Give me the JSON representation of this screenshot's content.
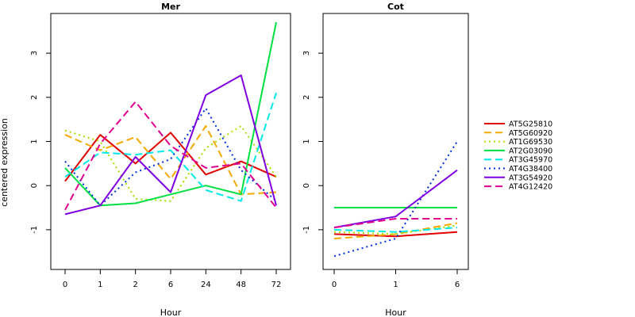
{
  "ylabel": "centered expression",
  "legend_placement": "right",
  "series_meta": [
    {
      "name": "AT5G25810",
      "color": "#e00000",
      "dash": "solid"
    },
    {
      "name": "AT5G60920",
      "color": "#f5a800",
      "dash": "dashed"
    },
    {
      "name": "AT1G69530",
      "color": "#a8e000",
      "dash": "dotted"
    },
    {
      "name": "AT2G03090",
      "color": "#00e040",
      "dash": "solid"
    },
    {
      "name": "AT3G45970",
      "color": "#00e8e8",
      "dash": "dashed"
    },
    {
      "name": "AT4G38400",
      "color": "#0030e0",
      "dash": "dotted"
    },
    {
      "name": "AT3G54920",
      "color": "#8000e0",
      "dash": "solid"
    },
    {
      "name": "AT4G12420",
      "color": "#e00090",
      "dash": "dashed"
    }
  ],
  "chart_data": [
    {
      "type": "line",
      "title": "Mer",
      "xlabel": "Hour",
      "ylabel": "centered expression",
      "categories": [
        "0",
        "1",
        "2",
        "6",
        "24",
        "48",
        "72"
      ],
      "ylim": [
        -1.9,
        3.9
      ],
      "yticks": [
        -1,
        0,
        1,
        2,
        3
      ],
      "series": [
        {
          "name": "AT5G25810",
          "values": [
            0.1,
            1.15,
            0.5,
            1.2,
            0.25,
            0.55,
            0.2
          ]
        },
        {
          "name": "AT5G60920",
          "values": [
            1.15,
            0.8,
            1.1,
            0.15,
            1.35,
            -0.2,
            -0.15
          ]
        },
        {
          "name": "AT1G69530",
          "values": [
            1.25,
            1.0,
            -0.3,
            -0.35,
            0.85,
            1.35,
            0.2
          ]
        },
        {
          "name": "AT2G03090",
          "values": [
            0.4,
            -0.45,
            -0.4,
            -0.2,
            0.0,
            -0.2,
            3.7
          ]
        },
        {
          "name": "AT3G45970",
          "values": [
            0.2,
            0.75,
            0.7,
            0.8,
            -0.1,
            -0.35,
            2.1
          ]
        },
        {
          "name": "AT4G38400",
          "values": [
            0.55,
            -0.45,
            0.3,
            0.6,
            1.75,
            0.35,
            -0.35
          ]
        },
        {
          "name": "AT3G54920",
          "values": [
            -0.65,
            -0.45,
            0.65,
            -0.15,
            2.05,
            2.5,
            -0.45
          ]
        },
        {
          "name": "AT4G12420",
          "values": [
            -0.55,
            0.95,
            1.9,
            0.9,
            0.4,
            0.5,
            -0.5
          ]
        }
      ]
    },
    {
      "type": "line",
      "title": "Cot",
      "xlabel": "Hour",
      "categories": [
        "0",
        "1",
        "6"
      ],
      "ylim": [
        -1.9,
        3.9
      ],
      "yticks": [
        -1,
        0,
        1,
        2,
        3
      ],
      "series": [
        {
          "name": "AT5G25810",
          "values": [
            -1.1,
            -1.15,
            -1.05
          ]
        },
        {
          "name": "AT5G60920",
          "values": [
            -1.2,
            -1.1,
            -0.85
          ]
        },
        {
          "name": "AT1G69530",
          "values": [
            -1.05,
            -1.1,
            -0.9
          ]
        },
        {
          "name": "AT2G03090",
          "values": [
            -0.5,
            -0.5,
            -0.5
          ]
        },
        {
          "name": "AT3G45970",
          "values": [
            -1.0,
            -1.05,
            -0.95
          ]
        },
        {
          "name": "AT4G38400",
          "values": [
            -1.6,
            -1.2,
            1.0
          ]
        },
        {
          "name": "AT3G54920",
          "values": [
            -0.95,
            -0.7,
            0.35
          ]
        },
        {
          "name": "AT4G12420",
          "values": [
            -0.95,
            -0.75,
            -0.75
          ]
        }
      ]
    }
  ]
}
